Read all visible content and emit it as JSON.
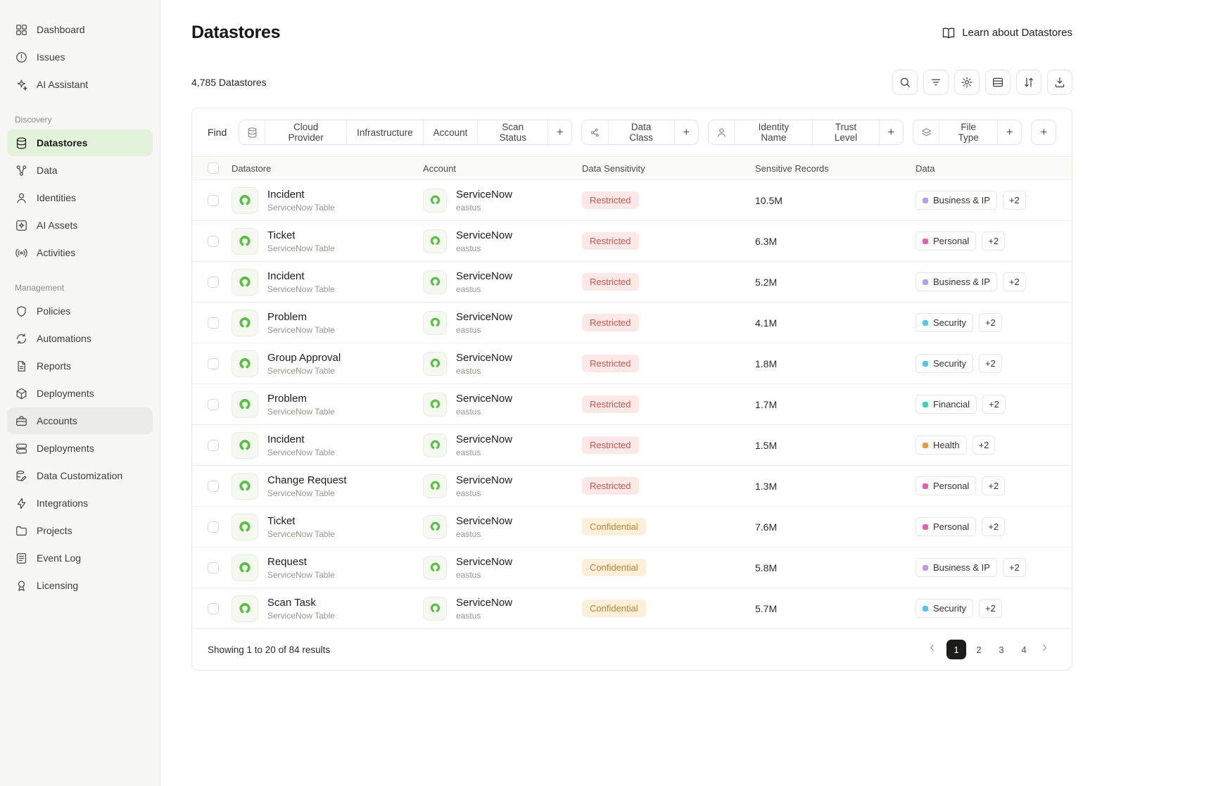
{
  "sidebar": {
    "top_items": [
      {
        "label": "Dashboard",
        "icon": "grid-icon"
      },
      {
        "label": "Issues",
        "icon": "alert-circle-icon"
      },
      {
        "label": "AI Assistant",
        "icon": "sparkles-icon"
      }
    ],
    "sections": [
      {
        "title": "Discovery",
        "items": [
          {
            "label": "Datastores",
            "icon": "database-icon",
            "active": true
          },
          {
            "label": "Data",
            "icon": "network-icon"
          },
          {
            "label": "Identities",
            "icon": "user-icon"
          },
          {
            "label": "AI Assets",
            "icon": "sparkle-box-icon"
          },
          {
            "label": "Activities",
            "icon": "broadcast-icon"
          }
        ]
      },
      {
        "title": "Management",
        "items": [
          {
            "label": "Policies",
            "icon": "shield-icon"
          },
          {
            "label": "Automations",
            "icon": "refresh-icon"
          },
          {
            "label": "Reports",
            "icon": "document-icon"
          },
          {
            "label": "Deployments",
            "icon": "package-icon"
          },
          {
            "label": "Accounts",
            "icon": "briefcase-icon",
            "highlighted": true
          },
          {
            "label": "Deployments",
            "icon": "server-icon"
          },
          {
            "label": "Data Customization",
            "icon": "database-edit-icon"
          },
          {
            "label": "Integrations",
            "icon": "zap-icon"
          },
          {
            "label": "Projects",
            "icon": "folder-icon"
          },
          {
            "label": "Event Log",
            "icon": "list-icon"
          },
          {
            "label": "Licensing",
            "icon": "award-icon"
          }
        ]
      }
    ]
  },
  "header": {
    "title": "Datastores",
    "learn_link": "Learn about Datastores",
    "count": "4,785 Datastores"
  },
  "toolbar": {
    "buttons": [
      {
        "name": "search",
        "icon": "search-icon"
      },
      {
        "name": "filter",
        "icon": "filter-icon"
      },
      {
        "name": "settings",
        "icon": "gear-icon"
      },
      {
        "name": "group-rows",
        "icon": "rows-icon"
      },
      {
        "name": "sort",
        "icon": "sort-icon"
      },
      {
        "name": "export",
        "icon": "download-icon"
      }
    ]
  },
  "filter_bar": {
    "find_label": "Find",
    "groups": [
      {
        "icon": "database-icon",
        "chips": [
          "Cloud Provider",
          "Infrastructure",
          "Account",
          "Scan Status"
        ],
        "add": "+"
      },
      {
        "icon": "scatter-icon",
        "chips": [
          "Data Class"
        ],
        "add": "+"
      },
      {
        "icon": "user-icon",
        "chips": [
          "Identity Name",
          "Trust Level"
        ],
        "add": "+"
      },
      {
        "icon": "layers-icon",
        "chips": [
          "File Type"
        ],
        "add": "+"
      }
    ],
    "add_group_label": "+"
  },
  "table": {
    "columns": [
      "Datastore",
      "Account",
      "Data Sensitivity",
      "Sensitive Records",
      "Data"
    ],
    "rows": [
      {
        "name": "Incident",
        "type": "ServiceNow Table",
        "account": "ServiceNow",
        "region": "eastus",
        "sensitivity": "Restricted",
        "records": "10.5M",
        "data_classes": [
          {
            "label": "Business & IP",
            "key": "business"
          }
        ],
        "more": "+2"
      },
      {
        "name": "Ticket",
        "type": "ServiceNow Table",
        "account": "ServiceNow",
        "region": "eastus",
        "sensitivity": "Restricted",
        "records": "6.3M",
        "data_classes": [
          {
            "label": "Personal",
            "key": "personal"
          }
        ],
        "more": "+2"
      },
      {
        "name": "Incident",
        "type": "ServiceNow Table",
        "account": "ServiceNow",
        "region": "eastus",
        "sensitivity": "Restricted",
        "records": "5.2M",
        "data_classes": [
          {
            "label": "Business & IP",
            "key": "business"
          }
        ],
        "more": "+2"
      },
      {
        "name": "Problem",
        "type": "ServiceNow Table",
        "account": "ServiceNow",
        "region": "eastus",
        "sensitivity": "Restricted",
        "records": "4.1M",
        "data_classes": [
          {
            "label": "Security",
            "key": "security"
          }
        ],
        "more": "+2"
      },
      {
        "name": "Group Approval",
        "type": "ServiceNow Table",
        "account": "ServiceNow",
        "region": "eastus",
        "sensitivity": "Restricted",
        "records": "1.8M",
        "data_classes": [
          {
            "label": "Security",
            "key": "security"
          }
        ],
        "more": "+2"
      },
      {
        "name": "Problem",
        "type": "ServiceNow Table",
        "account": "ServiceNow",
        "region": "eastus",
        "sensitivity": "Restricted",
        "records": "1.7M",
        "data_classes": [
          {
            "label": "Financial",
            "key": "financial"
          }
        ],
        "more": "+2"
      },
      {
        "name": "Incident",
        "type": "ServiceNow Table",
        "account": "ServiceNow",
        "region": "eastus",
        "sensitivity": "Restricted",
        "records": "1.5M",
        "data_classes": [
          {
            "label": "Health",
            "key": "health"
          }
        ],
        "more": "+2"
      },
      {
        "name": "Change Request",
        "type": "ServiceNow Table",
        "account": "ServiceNow",
        "region": "eastus",
        "sensitivity": "Restricted",
        "records": "1.3M",
        "data_classes": [
          {
            "label": "Personal",
            "key": "personal"
          }
        ],
        "more": "+2"
      },
      {
        "name": "Ticket",
        "type": "ServiceNow Table",
        "account": "ServiceNow",
        "region": "eastus",
        "sensitivity": "Confidential",
        "records": "7.6M",
        "data_classes": [
          {
            "label": "Personal",
            "key": "personal"
          }
        ],
        "more": "+2"
      },
      {
        "name": "Request",
        "type": "ServiceNow Table",
        "account": "ServiceNow",
        "region": "eastus",
        "sensitivity": "Confidential",
        "records": "5.8M",
        "data_classes": [
          {
            "label": "Business & IP",
            "key": "business"
          }
        ],
        "more": "+2"
      },
      {
        "name": "Scan Task",
        "type": "ServiceNow Table",
        "account": "ServiceNow",
        "region": "eastus",
        "sensitivity": "Confidential",
        "records": "5.7M",
        "data_classes": [
          {
            "label": "Security",
            "key": "security"
          }
        ],
        "more": "+2"
      }
    ]
  },
  "footer": {
    "showing": "Showing 1 to 20 of 84 results",
    "pages": [
      "1",
      "2",
      "3",
      "4"
    ],
    "active_page": "1"
  },
  "colors": {
    "sidebar_active_bg": "#e3f3db",
    "servicenow_green": "#57c140",
    "restricted_bg": "#fce9e7",
    "restricted_text": "#c8564e",
    "confidential_bg": "#fdf0da",
    "confidential_text": "#bf8433",
    "class_business": "#b69df2",
    "class_personal": "#ef5bb2",
    "class_security": "#52c7ef",
    "class_financial": "#38cfc0",
    "class_health": "#f6953f",
    "pagination_active_bg": "#1c1c1a"
  }
}
